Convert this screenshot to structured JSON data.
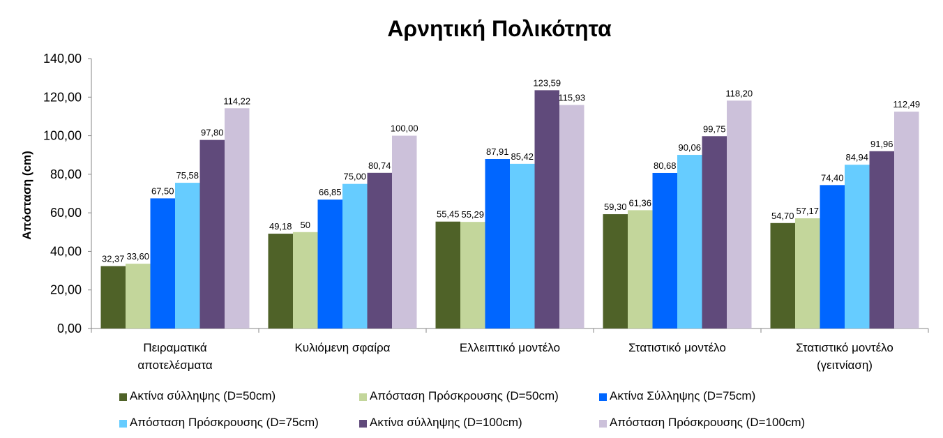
{
  "chart_data": {
    "type": "bar",
    "title": "Αρνητική Πολικότητα",
    "xlabel": "",
    "ylabel": "Απόσταση (cm)",
    "ylim": [
      0,
      140
    ],
    "ystep": 20,
    "ytick_labels": [
      "0,00",
      "20,00",
      "40,00",
      "60,00",
      "80,00",
      "100,00",
      "120,00",
      "140,00"
    ],
    "grid": false,
    "legend_position": "bottom",
    "categories": [
      [
        "Πειραματικά",
        "αποτελέσματα"
      ],
      [
        "Κυλιόμενη σφαίρα"
      ],
      [
        "Ελλειπτικό μοντέλο"
      ],
      [
        "Στατιστικό μοντέλο"
      ],
      [
        "Στατιστικό μοντέλο",
        "(γειτνίαση)"
      ]
    ],
    "series": [
      {
        "name": "Ακτίνα σύλληψης (D=50cm)",
        "color": "#4f6228",
        "values": [
          32.37,
          49.18,
          55.45,
          59.3,
          54.7
        ],
        "labels": [
          "32,37",
          "49,18",
          "55,45",
          "59,30",
          "54,70"
        ]
      },
      {
        "name": "Απόσταση Πρόσκρουσης (D=50cm)",
        "color": "#c3d69b",
        "values": [
          33.6,
          50,
          55.29,
          61.36,
          57.17
        ],
        "labels": [
          "33,60",
          "50",
          "55,29",
          "61,36",
          "57,17"
        ]
      },
      {
        "name": "Ακτίνα Σύλληψης (D=75cm)",
        "color": "#0066ff",
        "values": [
          67.5,
          66.85,
          87.91,
          80.68,
          74.4
        ],
        "labels": [
          "67,50",
          "66,85",
          "87,91",
          "80,68",
          "74,40"
        ]
      },
      {
        "name": "Απόσταση Πρόσκρουσης (D=75cm)",
        "color": "#66ccff",
        "values": [
          75.58,
          75.0,
          85.42,
          90.06,
          84.94
        ],
        "labels": [
          "75,58",
          "75,00",
          "85,42",
          "90,06",
          "84,94"
        ]
      },
      {
        "name": "Ακτίνα σύλληψης (D=100cm)",
        "color": "#604a7b",
        "values": [
          97.8,
          80.74,
          123.59,
          99.75,
          91.96
        ],
        "labels": [
          "97,80",
          "80,74",
          "123,59",
          "99,75",
          "91,96"
        ]
      },
      {
        "name": "Απόσταση Πρόσκρουσης (D=100cm)",
        "color": "#ccc1da",
        "values": [
          114.22,
          100.0,
          115.93,
          118.2,
          112.49
        ],
        "labels": [
          "114,22",
          "100,00",
          "115,93",
          "118,20",
          "112,49"
        ]
      }
    ]
  }
}
